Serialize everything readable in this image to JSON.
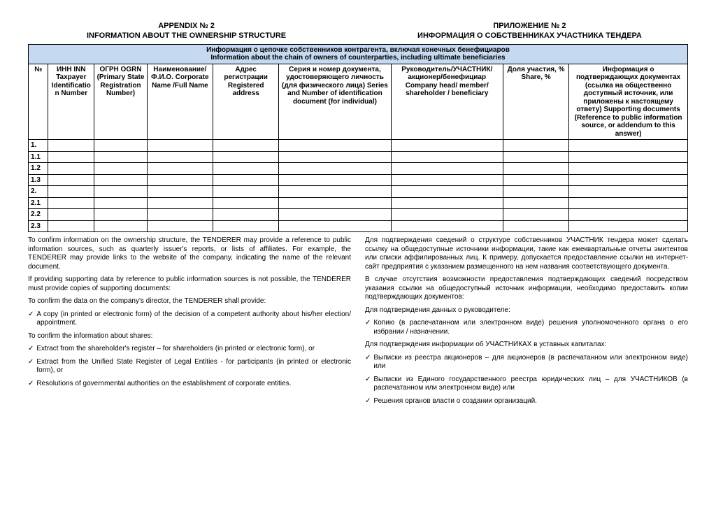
{
  "titles": {
    "left_line1": "APPENDIX № 2",
    "left_line2": "INFORMATION ABOUT THE OWNERSHIP STRUCTURE",
    "right_line1": "ПРИЛОЖЕНИЕ № 2",
    "right_line2": "ИНФОРМАЦИЯ О СОБСТВЕННИКАХ УЧАСТНИКА ТЕНДЕРА"
  },
  "band": {
    "ru": "Информация о цепочке собственников контрагента, включая конечных бенефициаров",
    "en": "Information about the chain of owners of counterparties, including ultimate beneficiaries"
  },
  "columns": {
    "c0": "№",
    "c1": "ИНН INN Taxpayer Identification Number",
    "c2": "ОГРН OGRN (Primary State Registration Number)",
    "c3": "Наименование/Ф.И.О. Corporate Name /Full Name",
    "c4": "Адрес регистрации Registered address",
    "c5": "Серия и номер документа, удостоверяющего личность (для физического лица) Series and Number of identification document (for individual)",
    "c6": "Руководитель/УЧАСТНИК/акционер/бенефициар Company head/ member/ shareholder / beneficiary",
    "c7": "Доля участия, % Share, %",
    "c8": "Информация о подтверждающих документах (ссылка на общественно доступный источник, или приложены к настоящему ответу) Supporting documents (Reference to public information source, or addendum to this answer)"
  },
  "col_widths": [
    "3%",
    "7%",
    "8%",
    "10%",
    "10%",
    "17%",
    "17%",
    "10%",
    "18%"
  ],
  "rows": [
    "1.",
    "1.1",
    "1.2",
    "1.3",
    "2.",
    "2.1",
    "2.2",
    "2.3"
  ],
  "notes": {
    "en": {
      "p1": "To confirm information on the ownership structure, the TENDERER may provide a reference to public information sources, such as quarterly issuer's reports, or lists of affiliates. For example, the TENDERER may provide links to the website of the company, indicating the name of the relevant document.",
      "p2": "If providing supporting data by reference to public information sources is not possible, the TENDERER must provide copies of supporting documents:",
      "p3": "To confirm the data on the company's director, the TENDERER shall provide:",
      "b1": "A copy (in printed or electronic form) of the decision of a competent authority about his/her election/ appointment.",
      "p4": "To confirm the information about shares:",
      "b2": "Extract from the shareholder's register – for shareholders (in printed or electronic form), or",
      "b3": "Extract from the Unified State Register of Legal Entities - for participants (in printed or electronic form), or",
      "b4": "Resolutions of governmental authorities on the establishment of corporate entities."
    },
    "ru": {
      "p1": "Для подтверждения сведений о структуре собственников УЧАСТНИК тендера может сделать ссылку на общедоступные источники информации, такие как ежеквартальные отчеты эмитентов или списки аффилированных лиц.  К примеру, допускается предоставление ссылки на интернет-сайт предприятия с указанием размещенного на нем названия соответствующего документа.",
      "p2": "В случае отсутствия возможности предоставления подтверждающих сведений посредством указания ссылки на общедоступный источник информации, необходимо предоставить копии подтверждающих документов:",
      "p3": "Для подтверждения данных о руководителе:",
      "b1": "Копию (в распечатанном или электронном виде) решения уполномоченного органа о его избрании / назначении.",
      "p4": "Для подтверждения информации об УЧАСТНИКАХ в уставных капиталах:",
      "b2": "Выписки из реестра акционеров – для акционеров (в распечатанном или электронном виде) или",
      "b3": "Выписки из Единого государственного реестра юридических лиц – для УЧАСТНИКОВ (в распечатанном или электронном виде) или",
      "b4": "Решения органов власти о создании организаций."
    }
  },
  "colors": {
    "header_band_bg": "#c5d9f1",
    "border": "#000000"
  }
}
